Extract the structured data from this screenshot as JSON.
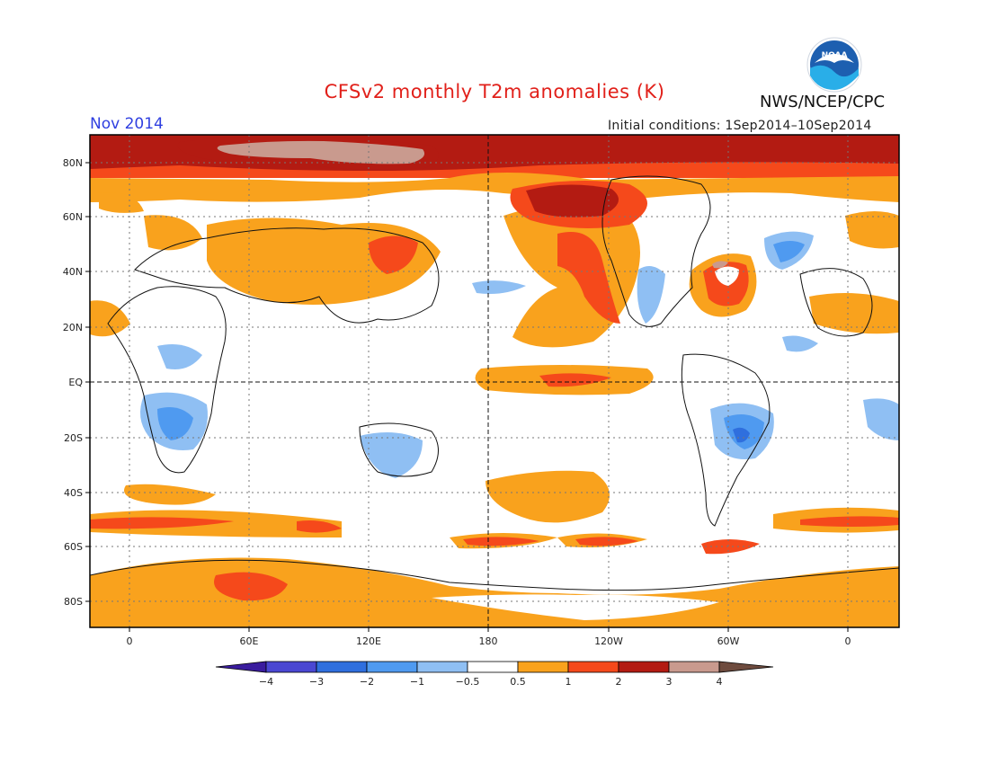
{
  "title": "CFSv2 monthly T2m anomalies (K)",
  "agency": "NWS/NCEP/CPC",
  "logo_text": "NOAA",
  "period": "Nov 2014",
  "initial_conditions": "Initial conditions: 1Sep2014–10Sep2014",
  "latitude_labels": [
    "80N",
    "60N",
    "40N",
    "20N",
    "EQ",
    "20S",
    "40S",
    "60S",
    "80S"
  ],
  "longitude_labels": [
    "0",
    "60E",
    "120E",
    "180",
    "120W",
    "60W",
    "0"
  ],
  "colorbar": {
    "labels": [
      "−4",
      "−3",
      "−2",
      "−1",
      "−0.5",
      "0.5",
      "1",
      "2",
      "3",
      "4"
    ],
    "colors": [
      "#3a1c9e",
      "#4a47d2",
      "#2f6fde",
      "#4f9af0",
      "#8fbff3",
      "#ffffff",
      "#f9a21d",
      "#f5491b",
      "#b31b12",
      "#c99a8e",
      "#6e4b3e"
    ]
  },
  "palette": {
    "blue_light": "#8fbff3",
    "blue_mid": "#4f9af0",
    "blue_dark": "#2f6fde",
    "orange": "#f9a21d",
    "red": "#f5491b",
    "darkred": "#b31b12",
    "tan": "#c99a8e"
  }
}
